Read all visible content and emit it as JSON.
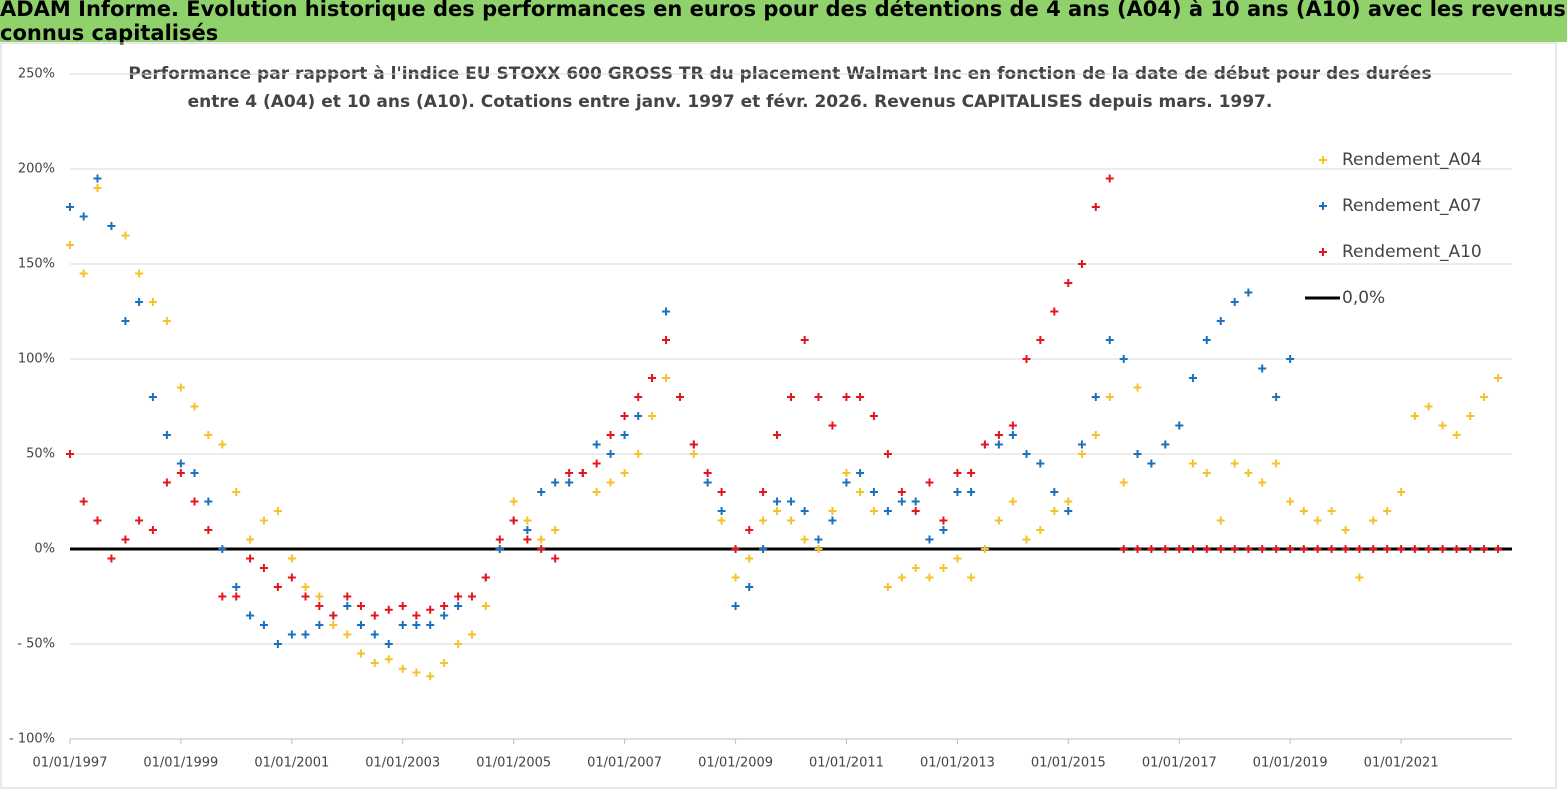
{
  "header": {
    "title": "ADAM Informe. Evolution historique des performances en euros pour des détentions de 4 ans (A04) à 10 ans (A10) avec les revenus connus capitalisés"
  },
  "chart_data": {
    "type": "scatter",
    "title": "Performance par rapport à l'indice EU STOXX 600 GROSS TR  du placement Walmart Inc en fonction de la date de début pour des durées",
    "subtitle": "entre 4 (A04) et 10 ans (A10).  Cotations entre janv. 1997 et févr. 2026. Revenus  CAPITALISES depuis mars. 1997.",
    "x": [
      "1997-01-01",
      "1997-04-01",
      "1997-07-01",
      "1997-10-01",
      "1998-01-01",
      "1998-04-01",
      "1998-07-01",
      "1998-10-01",
      "1999-01-01",
      "1999-04-01",
      "1999-07-01",
      "1999-10-01",
      "2000-01-01",
      "2000-04-01",
      "2000-07-01",
      "2000-10-01",
      "2001-01-01",
      "2001-04-01",
      "2001-07-01",
      "2001-10-01",
      "2002-01-01",
      "2002-04-01",
      "2002-07-01",
      "2002-10-01",
      "2003-01-01",
      "2003-04-01",
      "2003-07-01",
      "2003-10-01",
      "2004-01-01",
      "2004-04-01",
      "2004-07-01",
      "2004-10-01",
      "2005-01-01",
      "2005-04-01",
      "2005-07-01",
      "2005-10-01",
      "2006-01-01",
      "2006-04-01",
      "2006-07-01",
      "2006-10-01",
      "2007-01-01",
      "2007-04-01",
      "2007-07-01",
      "2007-10-01",
      "2008-01-01",
      "2008-04-01",
      "2008-07-01",
      "2008-10-01",
      "2009-01-01",
      "2009-04-01",
      "2009-07-01",
      "2009-10-01",
      "2010-01-01",
      "2010-04-01",
      "2010-07-01",
      "2010-10-01",
      "2011-01-01",
      "2011-04-01",
      "2011-07-01",
      "2011-10-01",
      "2012-01-01",
      "2012-04-01",
      "2012-07-01",
      "2012-10-01",
      "2013-01-01",
      "2013-04-01",
      "2013-07-01",
      "2013-10-01",
      "2014-01-01",
      "2014-04-01",
      "2014-07-01",
      "2014-10-01",
      "2015-01-01",
      "2015-04-01",
      "2015-07-01",
      "2015-10-01",
      "2016-01-01",
      "2016-04-01",
      "2016-07-01",
      "2016-10-01",
      "2017-01-01",
      "2017-04-01",
      "2017-07-01",
      "2017-10-01",
      "2018-01-01",
      "2018-04-01",
      "2018-07-01",
      "2018-10-01",
      "2019-01-01",
      "2019-04-01",
      "2019-07-01",
      "2019-10-01",
      "2020-01-01",
      "2020-04-01",
      "2020-07-01",
      "2020-10-01",
      "2021-01-01",
      "2021-04-01",
      "2021-07-01",
      "2021-10-01",
      "2022-01-01",
      "2022-04-01",
      "2022-07-01",
      "2022-10-01"
    ],
    "series": [
      {
        "name": "Rendement_A04",
        "color": "#f5c228",
        "values": [
          160,
          145,
          190,
          170,
          165,
          145,
          130,
          120,
          85,
          75,
          60,
          55,
          30,
          5,
          15,
          20,
          -5,
          -20,
          -25,
          -40,
          -45,
          -55,
          -60,
          -58,
          -63,
          -65,
          -67,
          -60,
          -50,
          -45,
          -30,
          0,
          25,
          15,
          5,
          10,
          35,
          40,
          30,
          35,
          40,
          50,
          70,
          90,
          80,
          50,
          35,
          15,
          -15,
          -5,
          15,
          20,
          15,
          5,
          0,
          20,
          40,
          30,
          20,
          -20,
          -15,
          -10,
          -15,
          -10,
          -5,
          -15,
          0,
          15,
          25,
          5,
          10,
          20,
          25,
          50,
          60,
          80,
          35,
          85,
          45,
          55,
          65,
          45,
          40,
          15,
          45,
          40,
          35,
          45,
          25,
          20,
          15,
          20,
          10,
          -15,
          15,
          20,
          30,
          70,
          75,
          65,
          60,
          70,
          80,
          90
        ]
      },
      {
        "name": "Rendement_A07",
        "color": "#1a72bd",
        "values": [
          180,
          175,
          195,
          170,
          120,
          130,
          80,
          60,
          45,
          40,
          25,
          0,
          -20,
          -35,
          -40,
          -50,
          -45,
          -45,
          -40,
          -35,
          -30,
          -40,
          -45,
          -50,
          -40,
          -40,
          -40,
          -35,
          -30,
          -25,
          -15,
          0,
          15,
          10,
          30,
          35,
          35,
          40,
          55,
          50,
          60,
          70,
          90,
          125,
          80,
          55,
          35,
          20,
          -30,
          -20,
          0,
          25,
          25,
          20,
          5,
          15,
          35,
          40,
          30,
          20,
          25,
          25,
          5,
          10,
          30,
          30,
          55,
          55,
          60,
          50,
          45,
          30,
          20,
          55,
          80,
          110,
          100,
          50,
          45,
          55,
          65,
          90,
          110,
          120,
          130,
          135,
          95,
          80,
          100,
          null,
          null,
          null,
          null,
          null,
          null,
          null,
          null,
          null,
          null,
          null,
          null,
          null,
          null,
          null
        ]
      },
      {
        "name": "Rendement_A10",
        "color": "#e8141c",
        "values": [
          50,
          25,
          15,
          -5,
          5,
          15,
          10,
          35,
          40,
          25,
          10,
          -25,
          -25,
          -5,
          -10,
          -20,
          -15,
          -25,
          -30,
          -35,
          -25,
          -30,
          -35,
          -32,
          -30,
          -35,
          -32,
          -30,
          -25,
          -25,
          -15,
          5,
          15,
          5,
          0,
          -5,
          40,
          40,
          45,
          60,
          70,
          80,
          90,
          110,
          80,
          55,
          40,
          30,
          0,
          10,
          30,
          60,
          80,
          110,
          80,
          65,
          80,
          80,
          70,
          50,
          30,
          20,
          35,
          15,
          40,
          40,
          55,
          60,
          65,
          100,
          110,
          125,
          140,
          150,
          180,
          195,
          0,
          0,
          0,
          0,
          0,
          0,
          0,
          0,
          0,
          0,
          0,
          0,
          0,
          0,
          0,
          0,
          0,
          0,
          0,
          0,
          0,
          0,
          0,
          0,
          0,
          0,
          0,
          0
        ]
      }
    ],
    "reference_line": {
      "name": "0,0%",
      "value": 0,
      "color": "#000000"
    },
    "xlim": [
      "1997-01-01",
      "2023-01-01"
    ],
    "xticks": [
      {
        "value": "1997-01-01",
        "label": "01/01/1997"
      },
      {
        "value": "1999-01-01",
        "label": "01/01/1999"
      },
      {
        "value": "2001-01-01",
        "label": "01/01/2001"
      },
      {
        "value": "2003-01-01",
        "label": "01/01/2003"
      },
      {
        "value": "2005-01-01",
        "label": "01/01/2005"
      },
      {
        "value": "2007-01-01",
        "label": "01/01/2007"
      },
      {
        "value": "2009-01-01",
        "label": "01/01/2009"
      },
      {
        "value": "2011-01-01",
        "label": "01/01/2011"
      },
      {
        "value": "2013-01-01",
        "label": "01/01/2013"
      },
      {
        "value": "2015-01-01",
        "label": "01/01/2015"
      },
      {
        "value": "2017-01-01",
        "label": "01/01/2017"
      },
      {
        "value": "2019-01-01",
        "label": "01/01/2019"
      },
      {
        "value": "2021-01-01",
        "label": "01/01/2021"
      }
    ],
    "ylim": [
      -100,
      250
    ],
    "yticks": [
      {
        "value": -100,
        "label": "- 100%"
      },
      {
        "value": -50,
        "label": "- 50%"
      },
      {
        "value": 0,
        "label": "0%"
      },
      {
        "value": 50,
        "label": "50%"
      },
      {
        "value": 100,
        "label": "100%"
      },
      {
        "value": 150,
        "label": "150%"
      },
      {
        "value": 200,
        "label": "200%"
      },
      {
        "value": 250,
        "label": "250%"
      }
    ],
    "grid": true,
    "legend": "right"
  }
}
